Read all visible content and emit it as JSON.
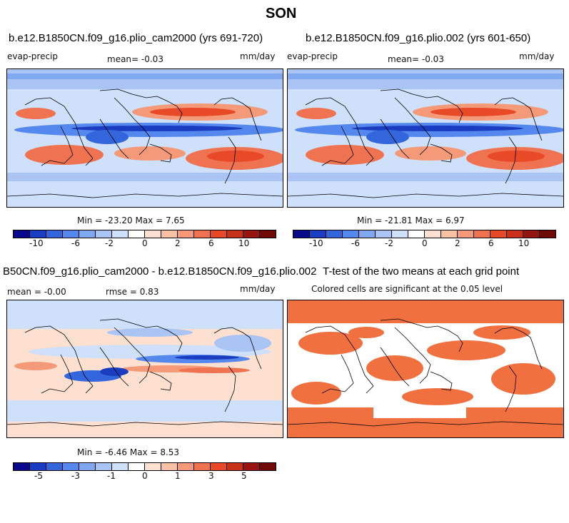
{
  "page_title": "SON",
  "colors": {
    "scale": [
      "#08088c",
      "#1a3cc0",
      "#3366dd",
      "#5588ee",
      "#80a8f0",
      "#aac4f4",
      "#cfe0fa",
      "#ffffff",
      "#fde0d0",
      "#f8c0a4",
      "#f49a78",
      "#ef7350",
      "#e84a28",
      "#c8301a",
      "#981410",
      "#700808"
    ],
    "sig": "#f07040"
  },
  "panels": [
    {
      "title": "b.e12.B1850CN.f09_g16.plio_cam2000 (yrs 691-720)",
      "left_label": "evap-precip",
      "center_label": "mean=  -0.03",
      "right_label": "mm/day",
      "minmax": "Min = -23.20 Max =   7.65",
      "ticks": [
        "-10",
        "-6",
        "-2",
        "0",
        "2",
        "6",
        "10"
      ]
    },
    {
      "title": "b.e12.B1850CN.f09_g16.plio.002 (yrs 601-650)",
      "left_label": "evap-precip",
      "center_label": "mean=  -0.03",
      "right_label": "mm/day",
      "minmax": "Min = -21.81 Max =   6.97",
      "ticks": [
        "-10",
        "-6",
        "-2",
        "0",
        "2",
        "6",
        "10"
      ]
    },
    {
      "title": "B50CN.f09_g16.plio_cam2000 - b.e12.B1850CN.f09_g16.plio.002",
      "left_label": "mean =  -0.00",
      "center_label": "rmse =   0.83",
      "right_label": "mm/day",
      "minmax": "Min =  -6.46 Max =   8.53",
      "ticks": [
        "-5",
        "-3",
        "-1",
        "0",
        "1",
        "3",
        "5"
      ]
    },
    {
      "title": "T-test of the two means at each grid point",
      "subtitle": "Colored cells are significant at the 0.05 level"
    }
  ]
}
